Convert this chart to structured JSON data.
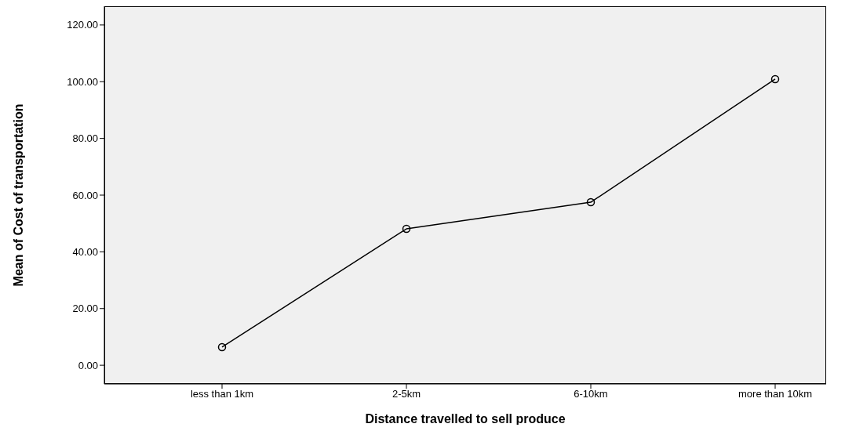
{
  "chart_data": {
    "type": "line",
    "xlabel": "Distance travelled to sell produce",
    "ylabel": "Mean of Cost of transportation",
    "categories": [
      "less than 1km",
      "2-5km",
      "6-10km",
      "more than 10km"
    ],
    "series": [
      {
        "color": "#000000",
        "values": [
          6.4,
          48.1,
          57.5,
          100.9
        ]
      }
    ],
    "ylim": [
      -6.6,
      126.6
    ],
    "yticks": [
      {
        "value": 0,
        "label": "0.00"
      },
      {
        "value": 20,
        "label": "20.00"
      },
      {
        "value": 40,
        "label": "40.00"
      },
      {
        "value": 60,
        "label": "60.00"
      },
      {
        "value": 80,
        "label": "80.00"
      },
      {
        "value": 100,
        "label": "100.00"
      },
      {
        "value": 120,
        "label": "120.00"
      }
    ],
    "grid": false,
    "legend": false,
    "marker": "circle",
    "line_style": "solid"
  }
}
